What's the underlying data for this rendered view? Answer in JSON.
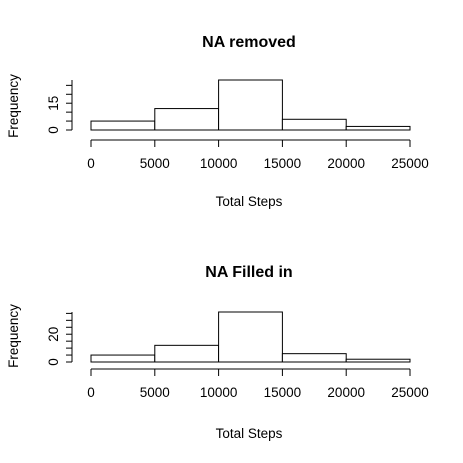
{
  "chart_data": [
    {
      "type": "bar",
      "title": "NA removed",
      "xlabel": "Total Steps",
      "ylabel": "Frequency",
      "x_ticks": [
        "0",
        "5000",
        "10000",
        "15000",
        "20000",
        "25000"
      ],
      "y_ticks": [
        "0",
        "15"
      ],
      "xlim": [
        0,
        25000
      ],
      "ylim": [
        0,
        28
      ],
      "bins": [
        {
          "from": 0,
          "to": 5000,
          "count": 5
        },
        {
          "from": 5000,
          "to": 10000,
          "count": 12
        },
        {
          "from": 10000,
          "to": 15000,
          "count": 28
        },
        {
          "from": 15000,
          "to": 20000,
          "count": 6
        },
        {
          "from": 20000,
          "to": 25000,
          "count": 2
        }
      ]
    },
    {
      "type": "bar",
      "title": "NA Filled in",
      "xlabel": "Total Steps",
      "ylabel": "Frequency",
      "x_ticks": [
        "0",
        "5000",
        "10000",
        "15000",
        "20000",
        "25000"
      ],
      "y_ticks": [
        "0",
        "20"
      ],
      "xlim": [
        0,
        25000
      ],
      "ylim": [
        0,
        36
      ],
      "bins": [
        {
          "from": 0,
          "to": 5000,
          "count": 5
        },
        {
          "from": 5000,
          "to": 10000,
          "count": 12
        },
        {
          "from": 10000,
          "to": 15000,
          "count": 36
        },
        {
          "from": 15000,
          "to": 20000,
          "count": 6
        },
        {
          "from": 20000,
          "to": 25000,
          "count": 2
        }
      ]
    }
  ]
}
